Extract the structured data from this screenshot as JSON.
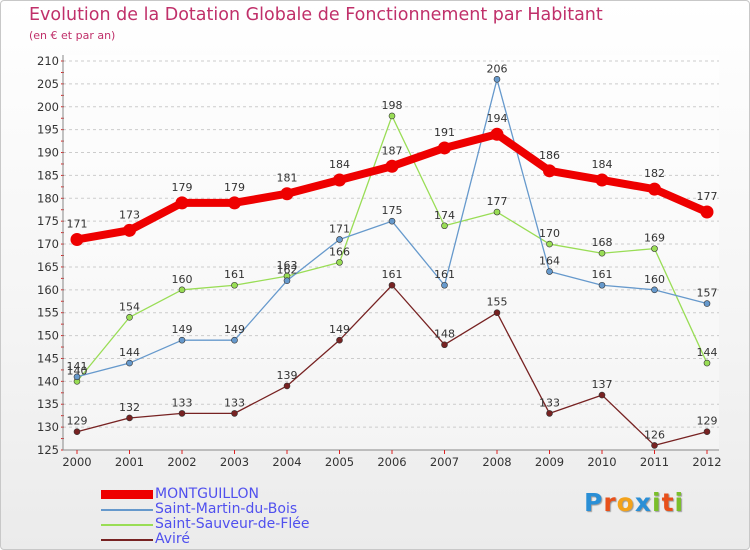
{
  "header": {
    "title": "Evolution de la Dotation Globale de Fonctionnement par Habitant",
    "subtitle": "(en € et par an)"
  },
  "chart_data": {
    "type": "line",
    "title": "Evolution de la Dotation Globale de Fonctionnement par Habitant",
    "subtitle": "(en € et par an)",
    "xlabel": "",
    "ylabel": "",
    "x": [
      "2000",
      "2001",
      "2002",
      "2003",
      "2004",
      "2005",
      "2006",
      "2007",
      "2008",
      "2009",
      "2010",
      "2011",
      "2012"
    ],
    "ylim": [
      125,
      210
    ],
    "yticks": [
      125,
      130,
      135,
      140,
      145,
      150,
      155,
      160,
      165,
      170,
      175,
      180,
      185,
      190,
      195,
      200,
      205,
      210
    ],
    "grid": "horizontal dashed",
    "legend_position": "bottom-left",
    "series": [
      {
        "name": "MONTGUILLON",
        "color": "#ee0000",
        "values": [
          171,
          173,
          179,
          179,
          181,
          184,
          187,
          191,
          194,
          186,
          184,
          182,
          177
        ]
      },
      {
        "name": "Saint-Martin-du-Bois",
        "color": "#6699cc",
        "values": [
          141,
          144,
          149,
          149,
          162,
          171,
          175,
          161,
          206,
          164,
          161,
          160,
          157
        ]
      },
      {
        "name": "Saint-Sauveur-de-Flée",
        "color": "#99dd55",
        "values": [
          140,
          154,
          160,
          161,
          163,
          166,
          198,
          174,
          177,
          170,
          168,
          169,
          144
        ]
      },
      {
        "name": "Aviré",
        "color": "#772222",
        "values": [
          129,
          132,
          133,
          133,
          139,
          149,
          161,
          148,
          155,
          133,
          137,
          126,
          129
        ]
      }
    ]
  },
  "legend": [
    {
      "label": "MONTGUILLON",
      "color": "#ee0000"
    },
    {
      "label": "Saint-Martin-du-Bois",
      "color": "#6699cc"
    },
    {
      "label": "Saint-Sauveur-de-Flée",
      "color": "#99dd55"
    },
    {
      "label": "Aviré",
      "color": "#772222"
    }
  ],
  "logo": {
    "letters": [
      "P",
      "r",
      "o",
      "x",
      "i",
      "t",
      "i"
    ],
    "colors": [
      "#2a8fd6",
      "#e8501a",
      "#f3a21a",
      "#2a8fd6",
      "#7bbf2a",
      "#e8501a",
      "#7bbf2a"
    ]
  }
}
